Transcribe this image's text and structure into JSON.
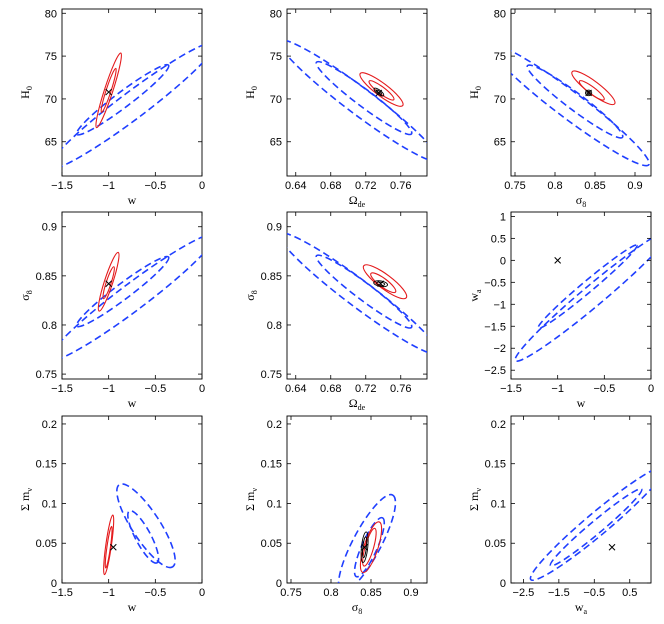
{
  "figure": {
    "description_free": true,
    "colors": {
      "outer": "#1f3fff",
      "middle": "#e41a1c",
      "inner": "#000000",
      "frame": "#000000"
    }
  },
  "chart_data": [
    {
      "id": "w-H0",
      "type": "contour",
      "xlabel": "w",
      "ylabel": "H",
      "xlabel_sub": "",
      "ylabel_sub": "0",
      "xlim": [
        -1.5,
        0
      ],
      "ylim": [
        61,
        80.5
      ],
      "xticks": [
        -1.5,
        -1,
        -0.5,
        0
      ],
      "xticklabels": [
        "−1.5",
        "−1",
        "−0.5",
        "0"
      ],
      "yticks": [
        65,
        70,
        75,
        80
      ],
      "yticklabels": [
        "65",
        "70",
        "75",
        "80"
      ],
      "center": [
        -1.0,
        70.8
      ],
      "ellipses": [
        {
          "style": "outer",
          "center": [
            -0.75,
            69.2
          ],
          "angle_deg": -37,
          "a": 1.48,
          "b": 0.19
        },
        {
          "style": "outer",
          "center": [
            -0.85,
            69.9
          ],
          "angle_deg": -37,
          "a": 0.82,
          "b": 0.11
        },
        {
          "style": "middle",
          "center": [
            -1.0,
            71.0
          ],
          "angle_deg": -72,
          "a": 0.56,
          "b": 0.06
        },
        {
          "style": "middle",
          "center": [
            -1.0,
            71.0
          ],
          "angle_deg": -72,
          "a": 0.33,
          "b": 0.035
        }
      ]
    },
    {
      "id": "Ode-H0",
      "type": "contour",
      "xlabel": "Ω",
      "ylabel": "H",
      "xlabel_sub": "de",
      "ylabel_sub": "0",
      "xlim": [
        0.63,
        0.79
      ],
      "ylim": [
        61,
        80.5
      ],
      "xticks": [
        0.64,
        0.68,
        0.72,
        0.76
      ],
      "xticklabels": [
        "0.64",
        "0.68",
        "0.72",
        "0.76"
      ],
      "yticks": [
        65,
        70,
        75,
        80
      ],
      "yticklabels": [
        "65",
        "70",
        "75",
        "80"
      ],
      "center": [
        0.735,
        70.7
      ],
      "ellipses": [
        {
          "style": "outer",
          "center": [
            0.712,
            69.8
          ],
          "angle_deg": 37,
          "a": 1.42,
          "b": 0.19
        },
        {
          "style": "outer",
          "center": [
            0.718,
            70.1
          ],
          "angle_deg": 37,
          "a": 0.85,
          "b": 0.12
        },
        {
          "style": "middle",
          "center": [
            0.738,
            71.1
          ],
          "angle_deg": 37,
          "a": 0.38,
          "b": 0.09
        },
        {
          "style": "middle",
          "center": [
            0.738,
            71.0
          ],
          "angle_deg": 37,
          "a": 0.22,
          "b": 0.05
        },
        {
          "style": "inner",
          "center": [
            0.735,
            70.8
          ],
          "angle_deg": 37,
          "a": 0.085,
          "b": 0.03
        },
        {
          "style": "inner",
          "center": [
            0.735,
            70.8
          ],
          "angle_deg": 37,
          "a": 0.045,
          "b": 0.015
        }
      ]
    },
    {
      "id": "s8-H0",
      "type": "contour",
      "xlabel": "σ",
      "ylabel": "H",
      "xlabel_sub": "8",
      "ylabel_sub": "0",
      "xlim": [
        0.745,
        0.92
      ],
      "ylim": [
        61,
        80.5
      ],
      "xticks": [
        0.75,
        0.8,
        0.85,
        0.9
      ],
      "xticklabels": [
        "0.75",
        "0.8",
        "0.85",
        "0.9"
      ],
      "yticks": [
        65,
        70,
        75,
        80
      ],
      "yticklabels": [
        "65",
        "70",
        "75",
        "80"
      ],
      "center": [
        0.842,
        70.7
      ],
      "ellipses": [
        {
          "style": "outer",
          "center": [
            0.818,
            69.3
          ],
          "angle_deg": 37,
          "a": 1.42,
          "b": 0.19
        },
        {
          "style": "outer",
          "center": [
            0.825,
            69.7
          ],
          "angle_deg": 37,
          "a": 0.85,
          "b": 0.12
        },
        {
          "style": "middle",
          "center": [
            0.848,
            71.3
          ],
          "angle_deg": 37,
          "a": 0.38,
          "b": 0.09
        },
        {
          "style": "middle",
          "center": [
            0.846,
            71.0
          ],
          "angle_deg": 37,
          "a": 0.22,
          "b": 0.05
        },
        {
          "style": "inner",
          "center": [
            0.842,
            70.7
          ],
          "angle_deg": 0,
          "a": 0.045,
          "b": 0.04
        },
        {
          "style": "inner",
          "center": [
            0.842,
            70.7
          ],
          "angle_deg": 0,
          "a": 0.025,
          "b": 0.022
        }
      ]
    },
    {
      "id": "w-s8",
      "type": "contour",
      "xlabel": "w",
      "ylabel": "σ",
      "xlabel_sub": "",
      "ylabel_sub": "8",
      "xlim": [
        -1.5,
        0
      ],
      "ylim": [
        0.745,
        0.915
      ],
      "xticks": [
        -1.5,
        -1,
        -0.5,
        0
      ],
      "xticklabels": [
        "−1.5",
        "−1",
        "−0.5",
        "0"
      ],
      "yticks": [
        0.75,
        0.8,
        0.85,
        0.9
      ],
      "yticklabels": [
        "0.75",
        "0.8",
        "0.85",
        "0.9"
      ],
      "center": [
        -1.0,
        0.842
      ],
      "ellipses": [
        {
          "style": "outer",
          "center": [
            -0.75,
            0.828
          ],
          "angle_deg": -37,
          "a": 1.48,
          "b": 0.19
        },
        {
          "style": "outer",
          "center": [
            -0.85,
            0.834
          ],
          "angle_deg": -37,
          "a": 0.82,
          "b": 0.11
        },
        {
          "style": "middle",
          "center": [
            -1.0,
            0.844
          ],
          "angle_deg": -72,
          "a": 0.44,
          "b": 0.06
        },
        {
          "style": "middle",
          "center": [
            -1.0,
            0.843
          ],
          "angle_deg": -72,
          "a": 0.24,
          "b": 0.035
        }
      ]
    },
    {
      "id": "Ode-s8",
      "type": "contour",
      "xlabel": "Ω",
      "ylabel": "σ",
      "xlabel_sub": "de",
      "ylabel_sub": "8",
      "xlim": [
        0.63,
        0.79
      ],
      "ylim": [
        0.745,
        0.915
      ],
      "xticks": [
        0.64,
        0.68,
        0.72,
        0.76
      ],
      "xticklabels": [
        "0.64",
        "0.68",
        "0.72",
        "0.76"
      ],
      "yticks": [
        0.75,
        0.8,
        0.85,
        0.9
      ],
      "yticklabels": [
        "0.75",
        "0.8",
        "0.85",
        "0.9"
      ],
      "center": [
        0.737,
        0.842
      ],
      "ellipses": [
        {
          "style": "outer",
          "center": [
            0.712,
            0.832
          ],
          "angle_deg": 37,
          "a": 1.42,
          "b": 0.19
        },
        {
          "style": "outer",
          "center": [
            0.718,
            0.834
          ],
          "angle_deg": 37,
          "a": 0.85,
          "b": 0.12
        },
        {
          "style": "middle",
          "center": [
            0.742,
            0.844
          ],
          "angle_deg": 37,
          "a": 0.38,
          "b": 0.1
        },
        {
          "style": "middle",
          "center": [
            0.74,
            0.843
          ],
          "angle_deg": 37,
          "a": 0.22,
          "b": 0.06
        },
        {
          "style": "inner",
          "center": [
            0.737,
            0.842
          ],
          "angle_deg": 10,
          "a": 0.1,
          "b": 0.04
        },
        {
          "style": "inner",
          "center": [
            0.737,
            0.842
          ],
          "angle_deg": 10,
          "a": 0.06,
          "b": 0.022
        }
      ]
    },
    {
      "id": "w-wa",
      "type": "contour",
      "xlabel": "w",
      "ylabel": "w",
      "xlabel_sub": "",
      "ylabel_sub": "a",
      "xlim": [
        -1.5,
        0
      ],
      "ylim": [
        -2.7,
        1.1
      ],
      "xticks": [
        -1.5,
        -1,
        -0.5,
        0
      ],
      "xticklabels": [
        "−1.5",
        "−1",
        "−0.5",
        "0"
      ],
      "yticks": [
        -2.5,
        -2,
        -1.5,
        -1,
        -0.5,
        0,
        0.5,
        1
      ],
      "yticklabels": [
        "−2.5",
        "−2",
        "−1.5",
        "−1",
        "−0.5",
        "0",
        "0.5",
        "1"
      ],
      "center": [
        -1.0,
        0.0
      ],
      "ellipses": [
        {
          "style": "outer",
          "center": [
            -0.62,
            -0.8
          ],
          "angle_deg": -40,
          "a": 1.45,
          "b": 0.15
        },
        {
          "style": "outer",
          "center": [
            -0.68,
            -0.6
          ],
          "angle_deg": -40,
          "a": 0.92,
          "b": 0.08
        }
      ]
    },
    {
      "id": "w-mnu",
      "type": "contour",
      "xlabel": "w",
      "ylabel": "Σ m",
      "xlabel_sub": "",
      "ylabel_sub": "ν",
      "xlim": [
        -1.5,
        0
      ],
      "ylim": [
        0,
        0.21
      ],
      "xticks": [
        -1.5,
        -1,
        -0.5,
        0
      ],
      "xticklabels": [
        "−1.5",
        "−1",
        "−0.5",
        "0"
      ],
      "yticks": [
        0,
        0.05,
        0.1,
        0.15,
        0.2
      ],
      "yticklabels": [
        "0",
        "0.05",
        "0.1",
        "0.15",
        "0.2"
      ],
      "center": [
        -0.95,
        0.045
      ],
      "ellipses": [
        {
          "style": "outer",
          "center": [
            -0.6,
            0.072
          ],
          "angle_deg": 57,
          "a": 0.7,
          "b": 0.2
        },
        {
          "style": "outer",
          "center": [
            -0.63,
            0.058
          ],
          "angle_deg": 62,
          "a": 0.42,
          "b": 0.11
        },
        {
          "style": "middle",
          "center": [
            -1.0,
            0.048
          ],
          "angle_deg": -82,
          "a": 0.43,
          "b": 0.04
        },
        {
          "style": "middle",
          "center": [
            -1.0,
            0.045
          ],
          "angle_deg": -82,
          "a": 0.3,
          "b": 0.025
        }
      ]
    },
    {
      "id": "s8-mnu",
      "type": "contour",
      "xlabel": "σ",
      "ylabel": "Σ m",
      "xlabel_sub": "8",
      "ylabel_sub": "ν",
      "xlim": [
        0.745,
        0.92
      ],
      "ylim": [
        0,
        0.21
      ],
      "xticks": [
        0.75,
        0.8,
        0.85,
        0.9
      ],
      "xticklabels": [
        "0.75",
        "0.8",
        "0.85",
        "0.9"
      ],
      "yticks": [
        0,
        0.05,
        0.1,
        0.15,
        0.2
      ],
      "yticklabels": [
        "0",
        "0.05",
        "0.1",
        "0.15",
        "0.2"
      ],
      "center": [
        0.842,
        0.045
      ],
      "ellipses": [
        {
          "style": "outer",
          "center": [
            0.845,
            0.05
          ],
          "angle_deg": -62,
          "a": 0.78,
          "b": 0.2
        },
        {
          "style": "outer",
          "center": [
            0.848,
            0.045
          ],
          "angle_deg": -66,
          "a": 0.46,
          "b": 0.11
        },
        {
          "style": "middle",
          "center": [
            0.85,
            0.045
          ],
          "angle_deg": -72,
          "a": 0.38,
          "b": 0.1
        },
        {
          "style": "middle",
          "center": [
            0.848,
            0.045
          ],
          "angle_deg": -74,
          "a": 0.28,
          "b": 0.06
        },
        {
          "style": "inner",
          "center": [
            0.842,
            0.045
          ],
          "angle_deg": -84,
          "a": 0.22,
          "b": 0.045
        },
        {
          "style": "inner",
          "center": [
            0.842,
            0.045
          ],
          "angle_deg": -84,
          "a": 0.15,
          "b": 0.025
        }
      ]
    },
    {
      "id": "wa-mnu",
      "type": "contour",
      "xlabel": "w",
      "ylabel": "Σ m",
      "xlabel_sub": "a",
      "ylabel_sub": "ν",
      "xlim": [
        -2.85,
        1.1
      ],
      "ylim": [
        0,
        0.21
      ],
      "xticks": [
        -2.5,
        -1.5,
        -0.5,
        0.5
      ],
      "xticklabels": [
        "−2.5",
        "−1.5",
        "−0.5",
        "0.5"
      ],
      "yticks": [
        0,
        0.05,
        0.1,
        0.15,
        0.2
      ],
      "yticklabels": [
        "0",
        "0.05",
        "0.1",
        "0.15",
        "0.2"
      ],
      "center": [
        0.0,
        0.045
      ],
      "ellipses": [
        {
          "style": "outer",
          "center": [
            -0.4,
            0.075
          ],
          "angle_deg": -40,
          "a": 1.25,
          "b": 0.16
        },
        {
          "style": "outer",
          "center": [
            -0.45,
            0.07
          ],
          "angle_deg": -40,
          "a": 0.85,
          "b": 0.09
        }
      ]
    }
  ]
}
